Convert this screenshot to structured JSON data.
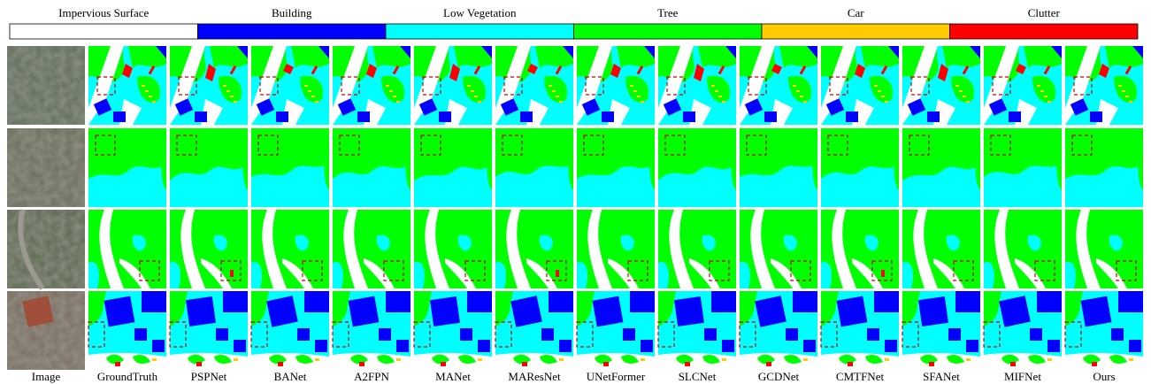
{
  "legend": [
    {
      "label": "Impervious Surface",
      "color": "#ffffff"
    },
    {
      "label": "Building",
      "color": "#0000ff"
    },
    {
      "label": "Low Vegetation",
      "color": "#00ffff"
    },
    {
      "label": "Tree",
      "color": "#00ff00"
    },
    {
      "label": "Car",
      "color": "#ffcc00"
    },
    {
      "label": "Clutter",
      "color": "#ff0000"
    }
  ],
  "columns": [
    "Image",
    "GroundTruth",
    "PSPNet",
    "BANet",
    "A2FPN",
    "MANet",
    "MAResNet",
    "UNetFormer",
    "SLCNet",
    "GCDNet",
    "CMTFNet",
    "SFANet",
    "MIFNet",
    "Ours"
  ]
}
